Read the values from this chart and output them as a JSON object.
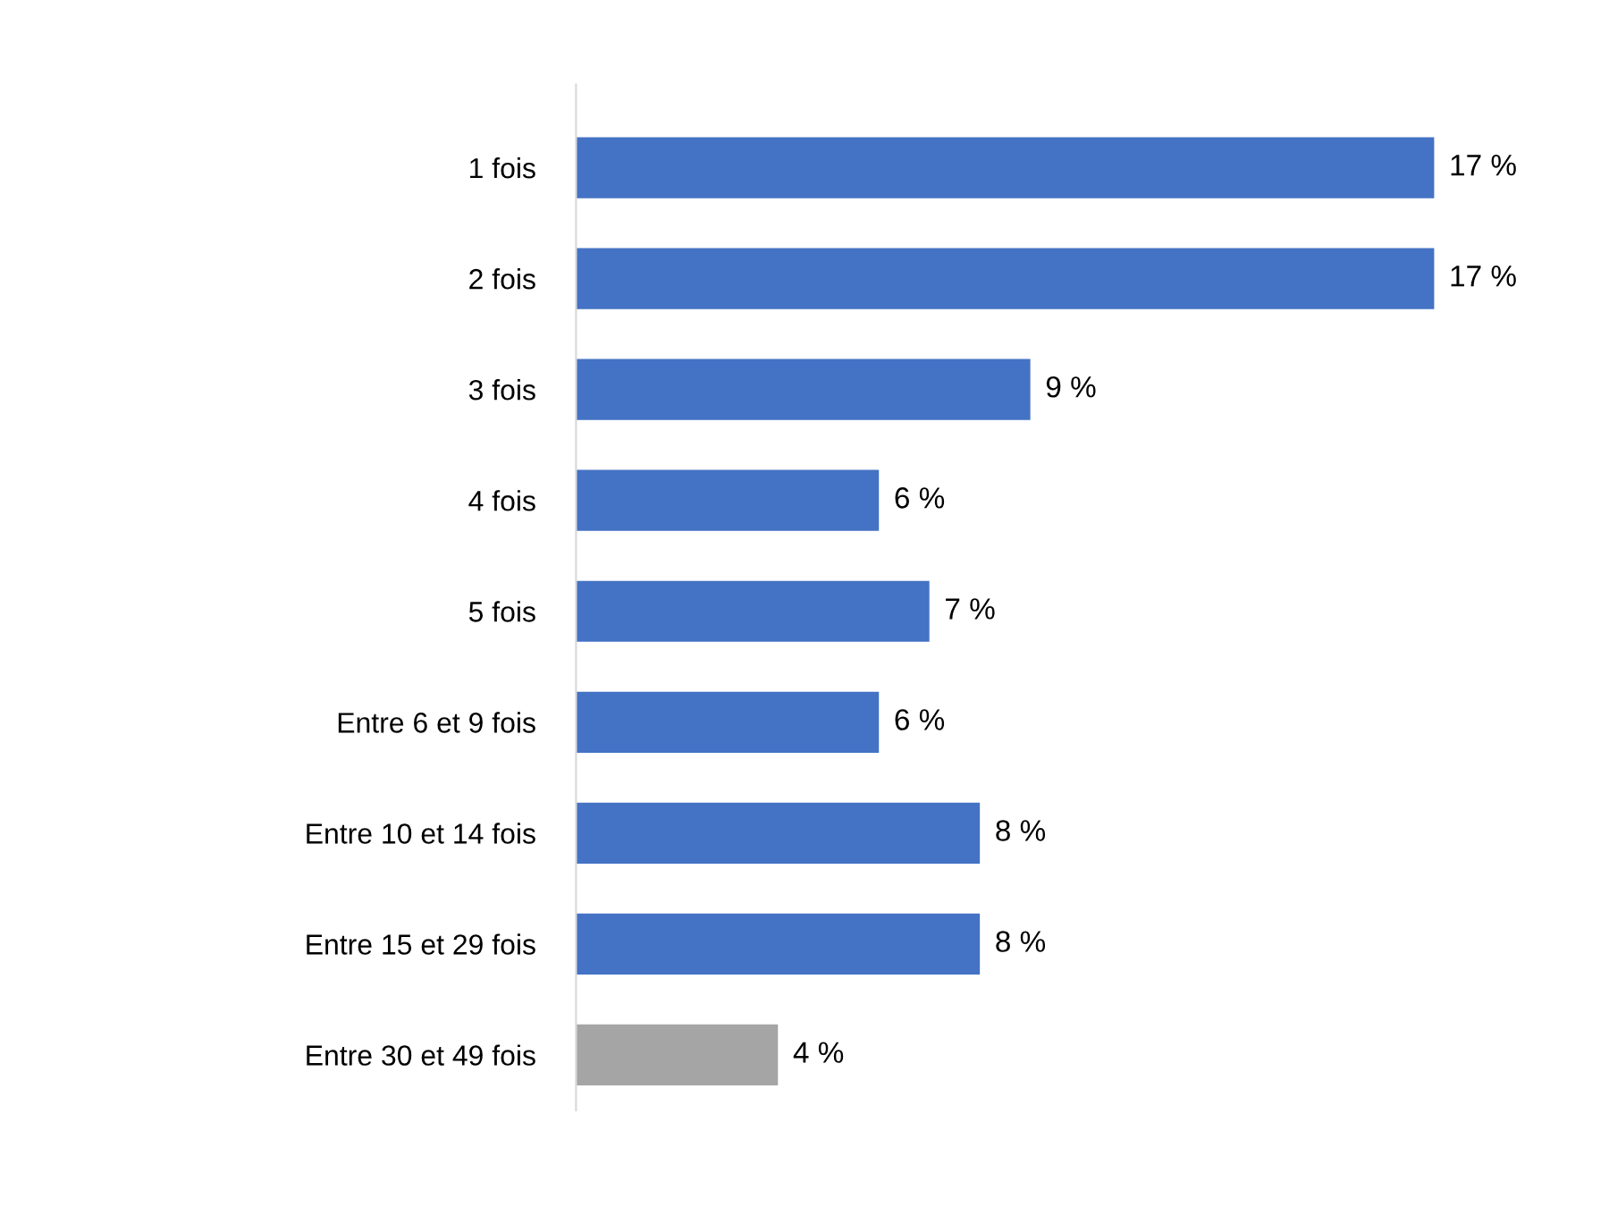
{
  "chart_data": {
    "type": "bar",
    "orientation": "horizontal",
    "categories": [
      "1 fois",
      "2 fois",
      "3 fois",
      "4 fois",
      "5 fois",
      "Entre 6 et 9 fois",
      "Entre 10 et 14 fois",
      "Entre 15 et 29 fois",
      "Entre 30 et 49 fois"
    ],
    "values": [
      17,
      17,
      9,
      6,
      7,
      6,
      8,
      8,
      4
    ],
    "colors": [
      "#4472c4",
      "#4472c4",
      "#4472c4",
      "#4472c4",
      "#4472c4",
      "#4472c4",
      "#4472c4",
      "#4472c4",
      "#a5a5a5"
    ],
    "value_labels": [
      "17 %",
      "17 %",
      "9 %",
      "6 %",
      "7 %",
      "6 %",
      "8 %",
      "8 %",
      "4 %"
    ],
    "tick_labels": "y",
    "grid": false,
    "legend": false
  }
}
